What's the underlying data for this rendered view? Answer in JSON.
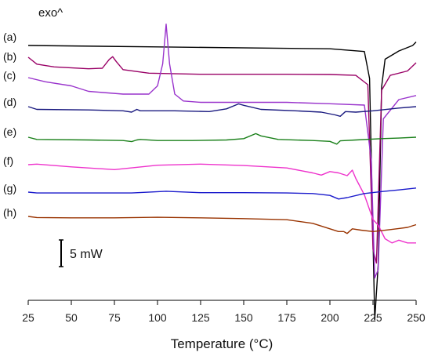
{
  "chart_data": {
    "type": "line",
    "title": "",
    "xlabel": "Temperature (°C)",
    "ylabel": "",
    "xlim": [
      25,
      250
    ],
    "x_ticks": [
      25,
      50,
      75,
      100,
      125,
      150,
      175,
      200,
      225,
      250
    ],
    "annotation_exo": "exo^",
    "scale_bar_label": "5 mW",
    "grid": false,
    "series": [
      {
        "name": "(a)",
        "color": "#000000",
        "points": [
          [
            25,
            0
          ],
          [
            100,
            -0.5
          ],
          [
            200,
            -1.2
          ],
          [
            220,
            -2.2
          ],
          [
            223,
            -12
          ],
          [
            226,
            -100
          ],
          [
            228,
            -80
          ],
          [
            230,
            -15
          ],
          [
            232,
            -5
          ],
          [
            240,
            -2
          ],
          [
            248,
            0
          ],
          [
            250,
            1.3
          ]
        ]
      },
      {
        "name": "(b)",
        "color": "#990066",
        "points": [
          [
            25,
            0
          ],
          [
            30,
            -2.5
          ],
          [
            40,
            -3.5
          ],
          [
            60,
            -4.2
          ],
          [
            68,
            -4.0
          ],
          [
            72,
            -0.8
          ],
          [
            74,
            0.2
          ],
          [
            76,
            -1.5
          ],
          [
            80,
            -4.5
          ],
          [
            95,
            -5.8
          ],
          [
            125,
            -6.2
          ],
          [
            175,
            -6.2
          ],
          [
            200,
            -6.3
          ],
          [
            215,
            -6.6
          ],
          [
            222,
            -10
          ],
          [
            225,
            -70
          ],
          [
            227,
            -75
          ],
          [
            230,
            -12
          ],
          [
            235,
            -6.6
          ],
          [
            245,
            -5.0
          ],
          [
            250,
            -2.0
          ]
        ]
      },
      {
        "name": "(c)",
        "color": "#9933cc",
        "points": [
          [
            25,
            0
          ],
          [
            35,
            -1.5
          ],
          [
            50,
            -3.0
          ],
          [
            60,
            -5.0
          ],
          [
            80,
            -6.0
          ],
          [
            95,
            -6.0
          ],
          [
            100,
            -3.0
          ],
          [
            103,
            5.0
          ],
          [
            105,
            19.5
          ],
          [
            107,
            5.0
          ],
          [
            110,
            -6.0
          ],
          [
            115,
            -8.5
          ],
          [
            125,
            -9.0
          ],
          [
            150,
            -9.0
          ],
          [
            175,
            -9.0
          ],
          [
            200,
            -9.5
          ],
          [
            220,
            -10
          ],
          [
            224,
            -30
          ],
          [
            226,
            -73
          ],
          [
            228,
            -70
          ],
          [
            231,
            -15
          ],
          [
            240,
            -8
          ],
          [
            250,
            -6.5
          ]
        ]
      },
      {
        "name": "(d)",
        "color": "#1a1a80",
        "points": [
          [
            25,
            0
          ],
          [
            30,
            -1.0
          ],
          [
            60,
            -1.2
          ],
          [
            80,
            -1.5
          ],
          [
            85,
            -2.0
          ],
          [
            88,
            -1.0
          ],
          [
            90,
            -1.5
          ],
          [
            110,
            -1.5
          ],
          [
            130,
            -1.8
          ],
          [
            140,
            -0.8
          ],
          [
            147,
            1.0
          ],
          [
            150,
            0.5
          ],
          [
            160,
            -1.0
          ],
          [
            180,
            -1.5
          ],
          [
            195,
            -2.0
          ],
          [
            203,
            -3.0
          ],
          [
            206,
            -3.5
          ],
          [
            209,
            -1.8
          ],
          [
            215,
            -2.0
          ],
          [
            225,
            -1.5
          ],
          [
            240,
            -0.5
          ],
          [
            250,
            0
          ]
        ]
      },
      {
        "name": "(e)",
        "color": "#1a801a",
        "points": [
          [
            25,
            0
          ],
          [
            30,
            -0.8
          ],
          [
            60,
            -1.0
          ],
          [
            80,
            -1.2
          ],
          [
            85,
            -1.6
          ],
          [
            88,
            -1.0
          ],
          [
            90,
            -0.8
          ],
          [
            100,
            -1.2
          ],
          [
            120,
            -1.2
          ],
          [
            140,
            -1.0
          ],
          [
            150,
            -0.5
          ],
          [
            157,
            1.3
          ],
          [
            160,
            0.5
          ],
          [
            170,
            -0.8
          ],
          [
            190,
            -1.2
          ],
          [
            200,
            -1.5
          ],
          [
            204,
            -2.5
          ],
          [
            206,
            -1.3
          ],
          [
            215,
            -1.0
          ],
          [
            230,
            -0.5
          ],
          [
            240,
            -0.3
          ],
          [
            250,
            0
          ]
        ]
      },
      {
        "name": "(f)",
        "color": "#ee33cc",
        "points": [
          [
            25,
            0
          ],
          [
            30,
            0.2
          ],
          [
            50,
            -0.8
          ],
          [
            75,
            -1.8
          ],
          [
            100,
            -0.2
          ],
          [
            125,
            0.2
          ],
          [
            150,
            -0.3
          ],
          [
            175,
            -1.2
          ],
          [
            190,
            -3.0
          ],
          [
            195,
            -3.8
          ],
          [
            200,
            -2.5
          ],
          [
            205,
            -3.0
          ],
          [
            210,
            -4.0
          ],
          [
            213,
            -2.0
          ],
          [
            215,
            -5.0
          ],
          [
            220,
            -11
          ],
          [
            225,
            -20
          ],
          [
            228,
            -22
          ],
          [
            232,
            -27
          ],
          [
            236,
            -28.5
          ],
          [
            240,
            -27.5
          ],
          [
            245,
            -28.5
          ],
          [
            250,
            -28.5
          ]
        ]
      },
      {
        "name": "(g)",
        "color": "#1a1acc",
        "points": [
          [
            25,
            0
          ],
          [
            30,
            -0.3
          ],
          [
            60,
            -0.3
          ],
          [
            85,
            -0.3
          ],
          [
            105,
            0.3
          ],
          [
            125,
            -0.2
          ],
          [
            150,
            -0.2
          ],
          [
            175,
            -0.3
          ],
          [
            190,
            -0.5
          ],
          [
            200,
            -1.2
          ],
          [
            205,
            -2.5
          ],
          [
            210,
            -2.0
          ],
          [
            220,
            -0.5
          ],
          [
            230,
            0.2
          ],
          [
            240,
            0.8
          ],
          [
            250,
            1.5
          ]
        ]
      },
      {
        "name": "(h)",
        "color": "#993300",
        "points": [
          [
            25,
            0
          ],
          [
            30,
            -0.4
          ],
          [
            50,
            -0.5
          ],
          [
            75,
            -0.5
          ],
          [
            100,
            -0.3
          ],
          [
            125,
            -0.5
          ],
          [
            150,
            -0.8
          ],
          [
            175,
            -1.2
          ],
          [
            190,
            -2.5
          ],
          [
            200,
            -4.5
          ],
          [
            205,
            -5.5
          ],
          [
            208,
            -5.5
          ],
          [
            210,
            -6.2
          ],
          [
            213,
            -4.5
          ],
          [
            218,
            -5.0
          ],
          [
            225,
            -5.5
          ],
          [
            235,
            -4.8
          ],
          [
            245,
            -4.0
          ],
          [
            250,
            -3.0
          ]
        ]
      }
    ]
  }
}
